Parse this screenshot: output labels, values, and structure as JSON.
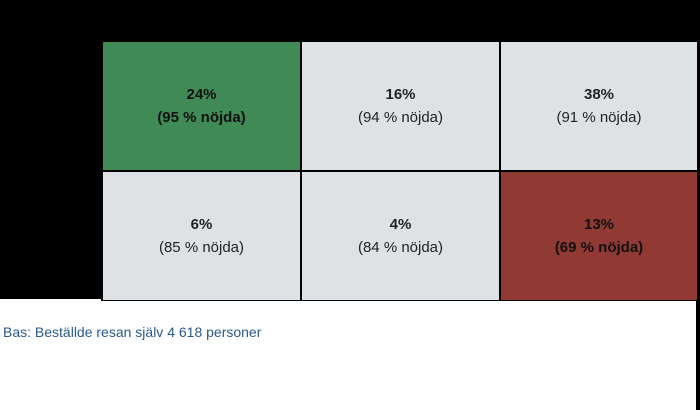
{
  "colors": {
    "high": "#3f8a55",
    "low": "#903a33",
    "neutral": "#dfe2e4",
    "footnote": "#2a5a8c"
  },
  "chart_data": {
    "type": "table",
    "cells": [
      {
        "share": "24%",
        "satisfaction": "(95 % nöjda)",
        "share_value": 24,
        "satisfied_value": 95,
        "highlight": "high"
      },
      {
        "share": "16%",
        "satisfaction": "(94 % nöjda)",
        "share_value": 16,
        "satisfied_value": 94,
        "highlight": "none"
      },
      {
        "share": "38%",
        "satisfaction": "(91 % nöjda)",
        "share_value": 38,
        "satisfied_value": 91,
        "highlight": "none"
      },
      {
        "share": "6%",
        "satisfaction": "(85 % nöjda)",
        "share_value": 6,
        "satisfied_value": 85,
        "highlight": "none"
      },
      {
        "share": "4%",
        "satisfaction": "(84 % nöjda)",
        "share_value": 4,
        "satisfied_value": 84,
        "highlight": "none"
      },
      {
        "share": "13%",
        "satisfaction": "(69 % nöjda)",
        "share_value": 13,
        "satisfied_value": 69,
        "highlight": "low"
      }
    ]
  },
  "footnote": "Bas: Beställde resan själv 4 618 personer"
}
